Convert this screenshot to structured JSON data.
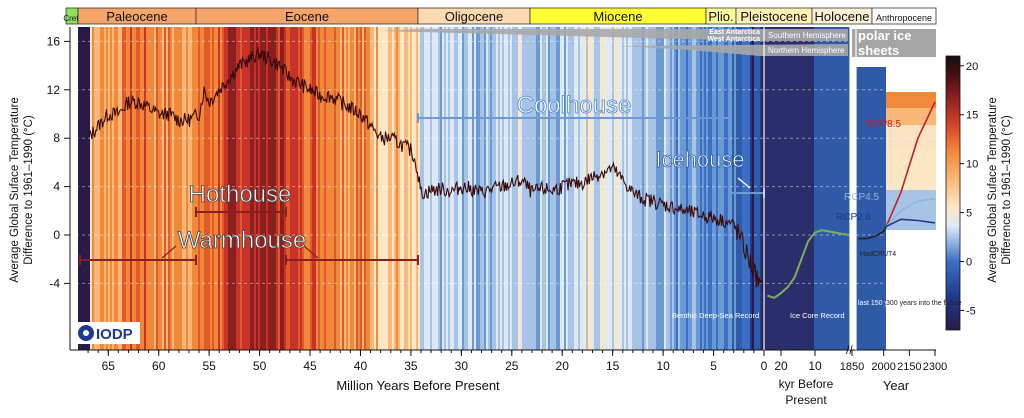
{
  "chart_data": {
    "type": "line",
    "title": "",
    "ylabel_left": "Average Global Suface Temperature Difference to 1961–1990 (°C)",
    "ylabel_right": "Average Global Suface Temperature Difference to 1961–1990 (°C)",
    "ylim": [
      -8,
      17
    ],
    "y_ticks": [
      "16",
      "12",
      "8",
      "4",
      "0",
      "-4"
    ],
    "colorbar": {
      "ticks": [
        "20",
        "15",
        "10",
        "5",
        "0",
        "-5"
      ],
      "range": [
        -7,
        21
      ]
    },
    "epochs": [
      {
        "name": "Cret.",
        "color": "#8ee05a"
      },
      {
        "name": "Paleocene",
        "color": "#f5a46a"
      },
      {
        "name": "Eocene",
        "color": "#f5a46a"
      },
      {
        "name": "Oligocene",
        "color": "#fcd9b0"
      },
      {
        "name": "Miocene",
        "color": "#ffff33"
      },
      {
        "name": "Plio.",
        "color": "#ffff99"
      },
      {
        "name": "Pleistocene",
        "color": "#fff2b3"
      },
      {
        "name": "Holocene",
        "color": "#fef0d6"
      },
      {
        "name": "Anthropocene",
        "color": "#ffffff"
      }
    ],
    "x_sections": [
      {
        "label": "Million Years Before Present",
        "ticks": [
          "65",
          "60",
          "55",
          "50",
          "45",
          "40",
          "35",
          "30",
          "25",
          "20",
          "15",
          "10",
          "5",
          "0"
        ]
      },
      {
        "label": "kyr Before Present",
        "ticks": [
          "20",
          "10"
        ]
      },
      {
        "label": "Year",
        "ticks": [
          "1850",
          "2000",
          "2150",
          "2300"
        ]
      }
    ],
    "climate_states": [
      "Hothouse",
      "Warmhouse",
      "Coolhouse",
      "Icehouse"
    ],
    "ice_sheets": {
      "southern": [
        "East Antarctica",
        "West Antarctica",
        "Southern Hemisphere"
      ],
      "northern": "Northern Hemisphere",
      "label_line1": "polar ice",
      "label_line2": "sheets"
    },
    "record_labels": [
      "Benthic Deep-Sea Record",
      "Ice Core Record"
    ],
    "panel_labels": [
      "last 150 years",
      "300 years into the future"
    ],
    "scenario_labels": [
      "RCP8.5",
      "RCP4.5",
      "RCP2.6",
      "HadCRUT4"
    ],
    "logo_text": "IODP",
    "series": [
      {
        "name": "Benthic Deep-Sea Record",
        "x_ma": [
          67,
          66,
          65,
          64,
          63,
          62,
          61,
          60,
          59,
          58,
          57,
          56,
          55.5,
          55,
          54,
          53,
          52,
          51,
          50,
          49,
          48,
          47,
          46,
          45,
          44,
          43,
          42,
          41,
          40,
          39,
          38,
          37,
          36,
          35,
          34.5,
          34,
          33.5,
          33,
          32,
          31,
          30,
          29,
          28,
          27,
          26,
          25,
          24,
          23,
          22,
          21,
          20,
          19,
          18,
          17,
          16,
          15,
          14,
          13,
          12,
          11,
          10,
          9,
          8,
          7,
          6,
          5,
          4,
          3.5,
          3,
          2.5,
          2,
          1.5,
          1,
          0.5,
          0
        ],
        "y": [
          8,
          9,
          10,
          10,
          11,
          11,
          10.5,
          10,
          10,
          9.5,
          9.5,
          10,
          12,
          11,
          12,
          13,
          14,
          14.5,
          15,
          14.5,
          14,
          13,
          12.5,
          12,
          11.5,
          11.5,
          11,
          10.5,
          10,
          9,
          8,
          8,
          7.5,
          7,
          6,
          3.5,
          3.5,
          3.7,
          3.8,
          3.6,
          4,
          3.8,
          3.5,
          3.8,
          4,
          4.2,
          4.5,
          3.5,
          3.8,
          3.7,
          4,
          4.2,
          4.3,
          4.8,
          5.2,
          5.5,
          4.5,
          3.5,
          3,
          2.8,
          2.5,
          2.3,
          2,
          1.8,
          1.6,
          1.4,
          1.2,
          1,
          0.8,
          0,
          -1,
          -2,
          -3,
          -4,
          -5
        ]
      },
      {
        "name": "Ice Core Record",
        "x_kyr": [
          24,
          22,
          20,
          18,
          16,
          14,
          12,
          10,
          8,
          6,
          4,
          2,
          0
        ],
        "y": [
          -5,
          -5.2,
          -4.8,
          -4.3,
          -3.5,
          -2,
          -0.5,
          0.2,
          0.4,
          0.3,
          0.2,
          0.1,
          0
        ]
      },
      {
        "name": "HadCRUT4",
        "x_year": [
          1850,
          1900,
          1950,
          2000,
          2015
        ],
        "y": [
          -0.3,
          -0.3,
          -0.1,
          0.3,
          0.7
        ]
      },
      {
        "name": "RCP8.5",
        "x_year": [
          2015,
          2100,
          2200,
          2300
        ],
        "y": [
          0.7,
          3.5,
          8,
          11
        ]
      },
      {
        "name": "RCP4.5",
        "x_year": [
          2015,
          2100,
          2200,
          2300
        ],
        "y": [
          0.7,
          2,
          2.8,
          3
        ]
      },
      {
        "name": "RCP2.6",
        "x_year": [
          2015,
          2100,
          2200,
          2300
        ],
        "y": [
          0.7,
          1.3,
          1.2,
          1
        ]
      }
    ]
  }
}
